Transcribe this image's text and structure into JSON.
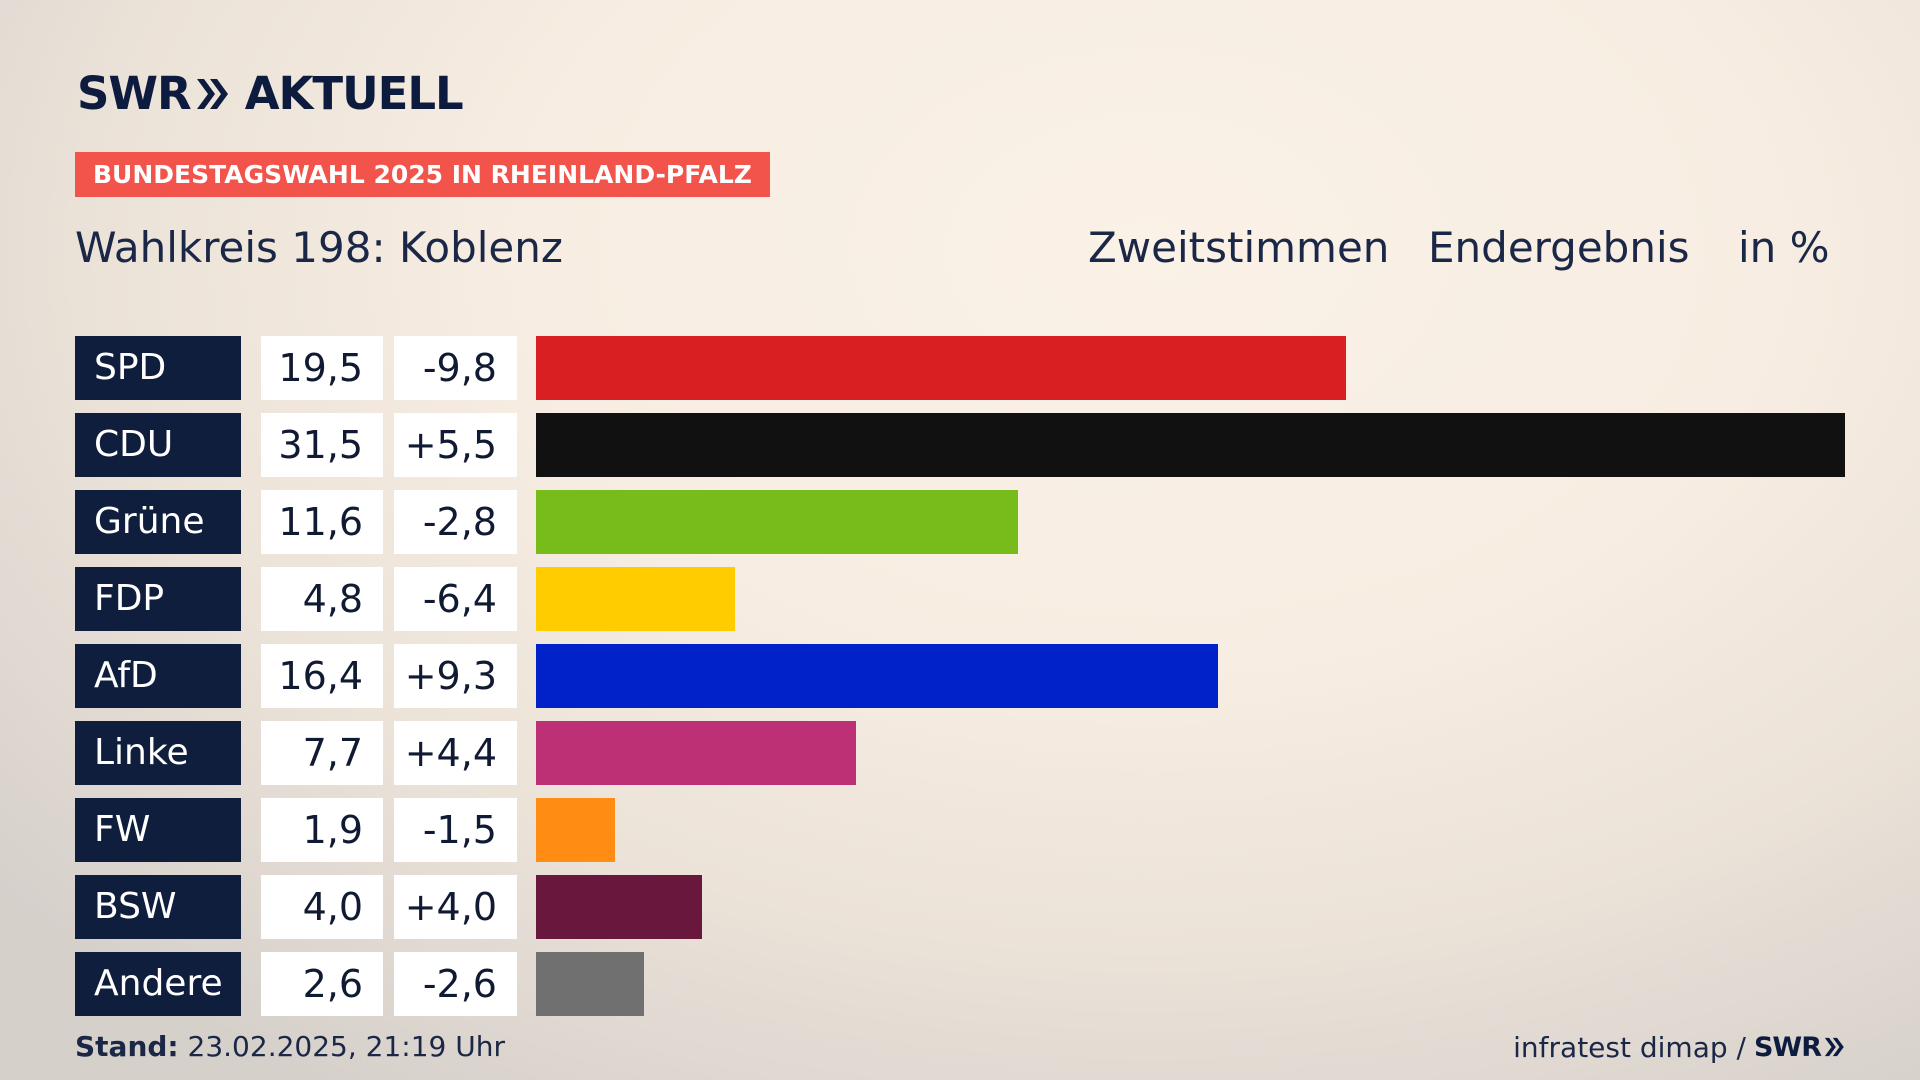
{
  "brand": {
    "logo_left": "SWR",
    "logo_right": "AKTUELL"
  },
  "kicker": "BUNDESTAGSWAHL 2025 IN RHEINLAND-PFALZ",
  "subtitle": "Wahlkreis 198: Koblenz",
  "header": {
    "vote_type": "Zweitstimmen",
    "status": "Endergebnis",
    "unit": "in %"
  },
  "chart_data": {
    "type": "bar",
    "orientation": "horizontal",
    "title": "Wahlkreis 198: Koblenz",
    "categories": [
      "SPD",
      "CDU",
      "Grüne",
      "FDP",
      "AfD",
      "Linke",
      "FW",
      "BSW",
      "Andere"
    ],
    "values": [
      19.5,
      31.5,
      11.6,
      4.8,
      16.4,
      7.7,
      1.9,
      4.0,
      2.6
    ],
    "labels": [
      "19,5",
      "31,5",
      "11,6",
      "4,8",
      "16,4",
      "7,7",
      "1,9",
      "4,0",
      "2,6"
    ],
    "diffs": [
      "-9,8",
      "+5,5",
      "-2,8",
      "-6,4",
      "+9,3",
      "+4,4",
      "-1,5",
      "+4,0",
      "-2,6"
    ],
    "colors": [
      "#d91f22",
      "#111111",
      "#78bc1b",
      "#ffcc00",
      "#0022c8",
      "#be3075",
      "#ff8c13",
      "#6a173e",
      "#707070"
    ],
    "xlim": [
      0,
      31.5
    ],
    "grid": false,
    "legend": "none"
  },
  "footer": {
    "stand_label": "Stand:",
    "stand_value": "23.02.2025, 21:19 Uhr",
    "source": "infratest dimap /",
    "source_brand": "SWR"
  }
}
